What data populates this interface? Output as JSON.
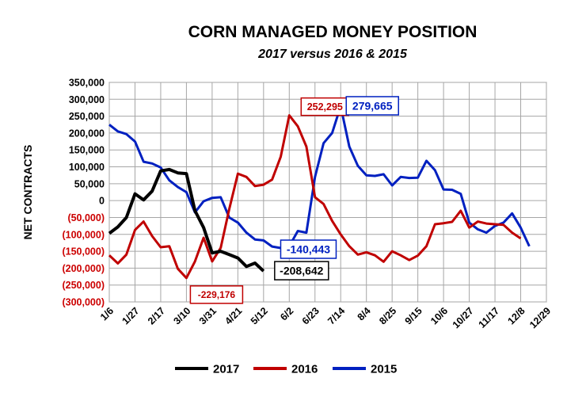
{
  "chart_data": {
    "type": "line",
    "title": "CORN MANAGED MONEY POSITION",
    "subtitle": "2017 versus 2016 & 2015",
    "ylabel": "NET CONTRACTS",
    "ylim": [
      -300000,
      350000
    ],
    "y_ticks": [
      350000,
      300000,
      250000,
      200000,
      150000,
      100000,
      50000,
      0,
      -50000,
      -100000,
      -150000,
      -200000,
      -250000,
      -300000
    ],
    "y_tick_labels": [
      "350,000",
      "300,000",
      "250,000",
      "200,000",
      "150,000",
      "100,000",
      "50,000",
      "0",
      "(50,000)",
      "(100,000)",
      "(150,000)",
      "(200,000)",
      "(250,000)",
      "(300,000)"
    ],
    "negative_tick_color": "#cc0000",
    "x_tick_labels": [
      "1/6",
      "1/27",
      "2/17",
      "3/10",
      "3/31",
      "4/21",
      "5/12",
      "6/2",
      "6/23",
      "7/14",
      "8/4",
      "8/25",
      "9/15",
      "10/6",
      "10/27",
      "11/17",
      "12/8",
      "12/29"
    ],
    "x_week_count": 52,
    "grid": true,
    "legend_position": "bottom",
    "series": [
      {
        "name": "2017",
        "color": "#000000",
        "values": [
          -97000,
          -78000,
          -50000,
          20000,
          2000,
          28000,
          88000,
          92000,
          82000,
          80000,
          -30000,
          -80000,
          -155000,
          -150000,
          -160000,
          -170000,
          -195000,
          -185000,
          -208642
        ]
      },
      {
        "name": "2016",
        "color": "#c00000",
        "values": [
          -162000,
          -186000,
          -160000,
          -87000,
          -62000,
          -105000,
          -138000,
          -135000,
          -202000,
          -229176,
          -180000,
          -110000,
          -180000,
          -140000,
          -25000,
          80000,
          70000,
          43000,
          47000,
          62000,
          130000,
          252295,
          220000,
          160000,
          10000,
          -10000,
          -60000,
          -100000,
          -135000,
          -160000,
          -153000,
          -162000,
          -181000,
          -150000,
          -162000,
          -176000,
          -163000,
          -135000,
          -70000,
          -67000,
          -63000,
          -30000,
          -80000,
          -62000,
          -68000,
          -70000,
          -72000,
          -95000,
          -112000
        ]
      },
      {
        "name": "2015",
        "color": "#0020c0",
        "values": [
          225000,
          205000,
          197000,
          175000,
          115000,
          110000,
          98000,
          60000,
          40000,
          25000,
          -35000,
          -2000,
          8000,
          10000,
          -50000,
          -65000,
          -95000,
          -115000,
          -118000,
          -136000,
          -140443,
          -135000,
          -90000,
          -95000,
          70000,
          170000,
          200000,
          279665,
          160000,
          103000,
          75000,
          73000,
          78000,
          45000,
          70000,
          67000,
          68000,
          118000,
          90000,
          33000,
          32000,
          20000,
          -65000,
          -85000,
          -95000,
          -75000,
          -65000,
          -38000,
          -80000,
          -135000
        ]
      }
    ],
    "annotations": [
      {
        "text": "-229,176",
        "series": "2016",
        "color": "#c00000"
      },
      {
        "text": "-208,642",
        "series": "2017",
        "color": "#000000"
      },
      {
        "text": "252,295",
        "series": "2016",
        "color": "#c00000"
      },
      {
        "text": "279,665",
        "series": "2015",
        "color": "#0020c0"
      },
      {
        "text": "-140,443",
        "series": "2015",
        "color": "#0020c0"
      }
    ]
  }
}
